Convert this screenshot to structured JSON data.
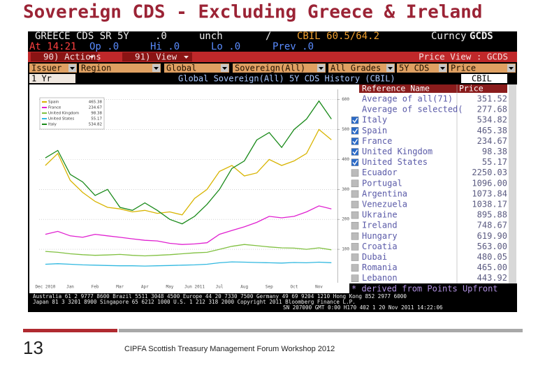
{
  "slide": {
    "title": "Sovereign CDS  - Excluding Greece & Ireland",
    "number": "13",
    "footer": "CIPFA Scottish Treasury Management Forum Workshop  2012"
  },
  "terminal": {
    "header": [
      "GREECE CDS SR 5Y",
      ".0",
      "unch",
      "/",
      "CBIL 60.5/64.2",
      "Curncy",
      "GCDS"
    ],
    "quote": [
      "At 14:21",
      "Op .0",
      "Hi .0",
      "Lo .0",
      "Prev .0"
    ],
    "menu": [
      "90) Actions",
      "91) View",
      "Price View : GCDS"
    ],
    "filters": [
      "Issuer",
      "Region",
      "Global",
      "Sovereign(All)",
      "All Grades",
      "5Y CDS",
      "Price"
    ],
    "period": "1 Yr",
    "chart_title": "Global Sovereign(All) 5Y CDS History (CBIL)",
    "source": "CBIL",
    "list": {
      "headers": [
        "Reference Name",
        "Price"
      ],
      "rows": [
        [
          "Average of all(71)",
          "351.52"
        ],
        [
          "Average of selected(",
          "277.68"
        ],
        [
          "Italy",
          "534.82"
        ],
        [
          "Spain",
          "465.38"
        ],
        [
          "France",
          "234.67"
        ],
        [
          "United Kingdom",
          "98.38"
        ],
        [
          "United States",
          "55.17"
        ],
        [
          "Ecuador",
          "2250.03"
        ],
        [
          "Portugal",
          "1096.00"
        ],
        [
          "Argentina",
          "1073.84"
        ],
        [
          "Venezuela",
          "1038.17"
        ],
        [
          "Ukraine",
          "895.88"
        ],
        [
          "Ireland",
          "748.67"
        ],
        [
          "Hungary",
          "619.90"
        ],
        [
          "Croatia",
          "563.00"
        ],
        [
          "Dubai",
          "480.05"
        ],
        [
          "Romania",
          "465.00"
        ],
        [
          "Lebanon",
          "443.92"
        ]
      ]
    },
    "note": "* derived from Points Upfront",
    "contacts": [
      "Australia 61 2 9777 8600 Brazil 5511 3048 4500 Europe 44 20 7330 7500 Germany 49 69 9204 1210 Hong Kong 852 2977 6000",
      "Japan 81 3 3201 8900        Singapore 65 6212 1000        U.S. 1 212 318 2000        Copyright 2011 Bloomberg Finance L.P.",
      "SN 207000    GMT 0:00 H170 402 1 20 Nov 2011 14:22:06"
    ]
  },
  "chart_data": {
    "type": "line",
    "categories": [
      "Dec 2010",
      null,
      "Jan",
      null,
      "Feb",
      null,
      "Mar",
      null,
      "Apr",
      null,
      "May",
      null,
      "Jun 2011",
      null,
      "Jul",
      null,
      "Aug",
      null,
      "Sep",
      null,
      "Oct",
      null,
      "Nov",
      null
    ],
    "series": [
      {
        "name": "Spain",
        "color": "#d8b400",
        "values": [
          380,
          420,
          330,
          290,
          260,
          240,
          235,
          225,
          230,
          220,
          225,
          215,
          270,
          300,
          360,
          380,
          345,
          355,
          400,
          380,
          395,
          420,
          500,
          465.38
        ]
      },
      {
        "name": "France",
        "color": "#e020d0",
        "values": [
          150,
          160,
          145,
          140,
          150,
          145,
          140,
          135,
          130,
          128,
          120,
          116,
          118,
          122,
          150,
          163,
          175,
          190,
          210,
          205,
          210,
          225,
          245,
          234.67
        ]
      },
      {
        "name": "United Kingdom",
        "color": "#80c040",
        "values": [
          93,
          90,
          85,
          82,
          80,
          81,
          83,
          80,
          78,
          80,
          82,
          85,
          88,
          90,
          100,
          110,
          116,
          112,
          108,
          105,
          104,
          100,
          105,
          98.38
        ]
      },
      {
        "name": "United States",
        "color": "#30b8e0",
        "values": [
          50,
          52,
          50,
          48,
          47,
          46,
          45,
          45,
          44,
          45,
          46,
          47,
          48,
          50,
          55,
          58,
          57,
          56,
          55,
          54,
          56,
          55,
          57,
          55.17
        ]
      },
      {
        "name": "Italy",
        "color": "#1a8a1a",
        "values": [
          405,
          430,
          350,
          325,
          280,
          300,
          240,
          230,
          255,
          230,
          200,
          185,
          210,
          250,
          300,
          370,
          395,
          465,
          490,
          440,
          500,
          535,
          595,
          534.82
        ]
      }
    ],
    "ylim": [
      0,
      620
    ],
    "yticks": [
      100,
      200,
      300,
      400,
      500,
      600
    ],
    "grid": true,
    "legend": "upper left"
  }
}
